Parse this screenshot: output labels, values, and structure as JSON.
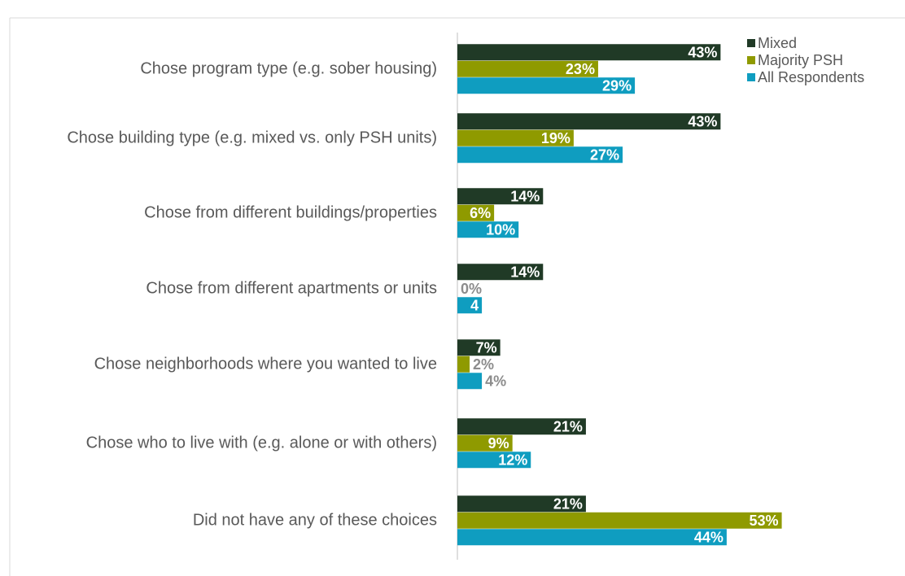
{
  "chart_data": {
    "type": "bar",
    "orientation": "horizontal",
    "categories": [
      "Chose program type (e.g. sober housing)",
      "Chose building type (e.g. mixed vs. only PSH units)",
      "Chose from different buildings/properties",
      "Chose from different apartments or units",
      "Chose neighborhoods where you wanted to live",
      "Chose who to live with (e.g. alone or with others)",
      "Did not have any of these choices"
    ],
    "series": [
      {
        "name": "Mixed",
        "color": "#203a26",
        "values": [
          43,
          43,
          14,
          14,
          7,
          21,
          21
        ],
        "value_labels": [
          "43%",
          "43%",
          "14%",
          "14%",
          "7%",
          "21%",
          "21%"
        ]
      },
      {
        "name": "Majority PSH",
        "color": "#8f9a00",
        "values": [
          23,
          19,
          6,
          0,
          2,
          9,
          53
        ],
        "value_labels": [
          "23%",
          "19%",
          "6%",
          "0%",
          "2%",
          "9%",
          "53%"
        ]
      },
      {
        "name": "All Respondents",
        "color": "#0f9dc0",
        "values": [
          29,
          27,
          10,
          4,
          4,
          12,
          44
        ],
        "value_labels": [
          "29%",
          "27%",
          "10%",
          "4",
          "4%",
          "12%",
          "44%"
        ]
      }
    ],
    "legend": "top-right"
  }
}
